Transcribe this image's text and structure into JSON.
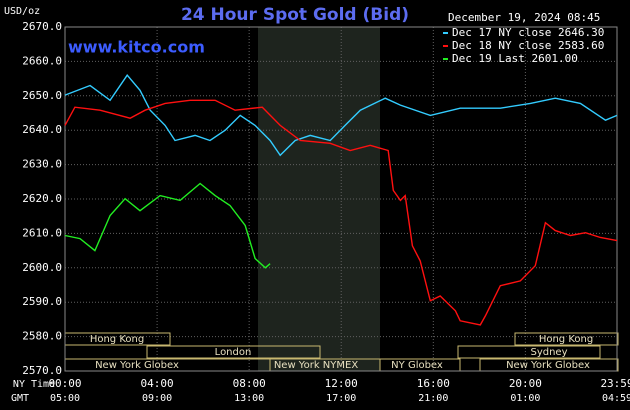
{
  "chart_data": {
    "type": "line",
    "title": "24 Hour Spot Gold (Bid)",
    "y_label": "USD/oz",
    "date": "December 19, 2024 08:45",
    "site": "www.kitco.com",
    "time_row_labels": [
      "NY Time",
      "GMT"
    ],
    "gmt_labels": [
      "05:00",
      "09:00",
      "13:00",
      "17:00",
      "21:00",
      "01:00",
      "04:59"
    ],
    "sessions": [
      "Hong Kong",
      "London",
      "New York Globex",
      "New York NYMEX",
      "NY Globex",
      "Sydney",
      "Hong Kong",
      "New York Globex"
    ],
    "xlim": [
      0,
      23.98
    ],
    "xticks": [
      {
        "value": 0,
        "label": "00:00"
      },
      {
        "value": 4,
        "label": "04:00"
      },
      {
        "value": 8,
        "label": "08:00"
      },
      {
        "value": 12,
        "label": "12:00"
      },
      {
        "value": 16,
        "label": "16:00"
      },
      {
        "value": 20,
        "label": "20:00"
      },
      {
        "value": 23.98,
        "label": "23:59"
      }
    ],
    "ylim": [
      2570,
      2670
    ],
    "yticks": [
      {
        "value": 2570,
        "label": "2570.0"
      },
      {
        "value": 2580,
        "label": "2580.0"
      },
      {
        "value": 2590,
        "label": "2590.0"
      },
      {
        "value": 2600,
        "label": "2600.0"
      },
      {
        "value": 2610,
        "label": "2610.0"
      },
      {
        "value": 2620,
        "label": "2620.0"
      },
      {
        "value": 2630,
        "label": "2630.0"
      },
      {
        "value": 2640,
        "label": "2640.0"
      },
      {
        "value": 2650,
        "label": "2650.0"
      },
      {
        "value": 2660,
        "label": "2660.0"
      },
      {
        "value": 2670,
        "label": "2670.0"
      }
    ],
    "grid": true,
    "series": [
      {
        "name": "Dec 17 NY close 2646.30",
        "color": "#33ccff",
        "x": [
          0,
          1.09,
          1.96,
          2.7,
          3.26,
          3.7,
          4.35,
          4.78,
          5.65,
          6.3,
          6.96,
          7.61,
          8.26,
          8.91,
          9.35,
          10,
          10.65,
          11.52,
          12.17,
          12.83,
          13.91,
          14.57,
          15.87,
          17.17,
          18.91,
          20.22,
          21.3,
          22.39,
          23.48,
          23.98
        ],
        "values": [
          2650.2,
          2653,
          2648.7,
          2656,
          2651.6,
          2645.8,
          2641.4,
          2637,
          2638.5,
          2637,
          2640,
          2644.3,
          2641.4,
          2637,
          2632.7,
          2637,
          2638.5,
          2637,
          2641.4,
          2645.8,
          2649.3,
          2647.3,
          2644.3,
          2646.4,
          2646.4,
          2647.8,
          2649.3,
          2647.8,
          2642.9,
          2644.3
        ]
      },
      {
        "name": "Dec 18 NY close 2583.60",
        "color": "#ff1010",
        "x": [
          0,
          0.43,
          1.52,
          2.83,
          3.48,
          4.35,
          5.43,
          6.52,
          7.39,
          8.57,
          9.35,
          10.22,
          11.52,
          12.39,
          13.26,
          14.04,
          14.26,
          14.57,
          14.78,
          15.09,
          15.43,
          15.87,
          16.3,
          16.96,
          17.17,
          18.04,
          18.26,
          18.91,
          19.78,
          20.43,
          20.87,
          21.3,
          21.96,
          22.61,
          23.26,
          23.98
        ],
        "values": [
          2641.4,
          2646.7,
          2645.8,
          2643.5,
          2645.8,
          2647.8,
          2648.7,
          2648.7,
          2645.8,
          2646.7,
          2641.4,
          2637,
          2636.2,
          2634.1,
          2635.6,
          2634.1,
          2622.5,
          2619.6,
          2621,
          2606.4,
          2602,
          2590.4,
          2591.8,
          2587.5,
          2584.6,
          2583.4,
          2586,
          2594.8,
          2596.2,
          2600.6,
          2613.1,
          2610.8,
          2609.4,
          2610.2,
          2608.8,
          2607.9
        ]
      },
      {
        "name": "Dec 19 Last 2601.00",
        "color": "#22ee22",
        "x": [
          0,
          0.65,
          1.3,
          1.96,
          2.61,
          3.26,
          4.13,
          5,
          5.87,
          6.52,
          7.17,
          7.83,
          8.26,
          8.7,
          8.91
        ],
        "values": [
          2609.4,
          2608.5,
          2605,
          2615.2,
          2620.1,
          2616.6,
          2621,
          2619.6,
          2624.5,
          2621,
          2618.1,
          2612.3,
          2602.7,
          2600,
          2601.2
        ]
      }
    ]
  }
}
